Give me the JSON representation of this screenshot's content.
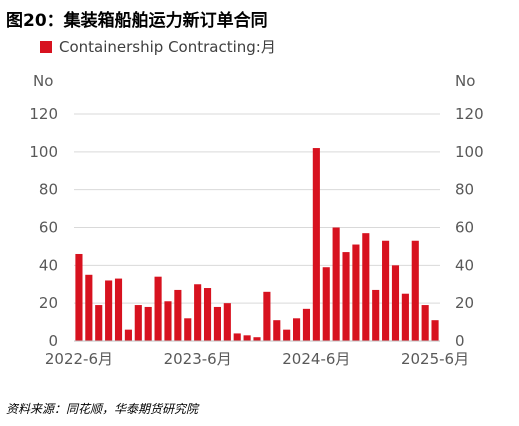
{
  "figure": {
    "title": "图20：集装箱船舶运力新订单合同",
    "source": "资料来源：同花顺，华泰期货研究院"
  },
  "chart_data": {
    "type": "bar",
    "legend": {
      "position": "top-left",
      "entries": [
        "Containership Contracting:月"
      ]
    },
    "series": [
      {
        "name": "Containership Contracting:月",
        "color": "#d7121f",
        "values": [
          46,
          35,
          19,
          32,
          33,
          6,
          19,
          18,
          34,
          21,
          27,
          12,
          30,
          28,
          18,
          20,
          4,
          3,
          2,
          26,
          11,
          6,
          12,
          17,
          102,
          39,
          60,
          47,
          51,
          57,
          27,
          53,
          40,
          25,
          53,
          19,
          11
        ]
      }
    ],
    "x_tick_labels": [
      "2022-6月",
      "2023-6月",
      "2024-6月",
      "2025-6月"
    ],
    "x_tick_indices": [
      0,
      12,
      24,
      36
    ],
    "y_left": {
      "unit": "No",
      "ticks": [
        0,
        20,
        40,
        60,
        80,
        100,
        120
      ]
    },
    "y_right": {
      "unit": "No",
      "ticks": [
        0,
        20,
        40,
        60,
        80,
        100,
        120
      ]
    },
    "ylim": [
      0,
      120
    ],
    "grid": true
  }
}
